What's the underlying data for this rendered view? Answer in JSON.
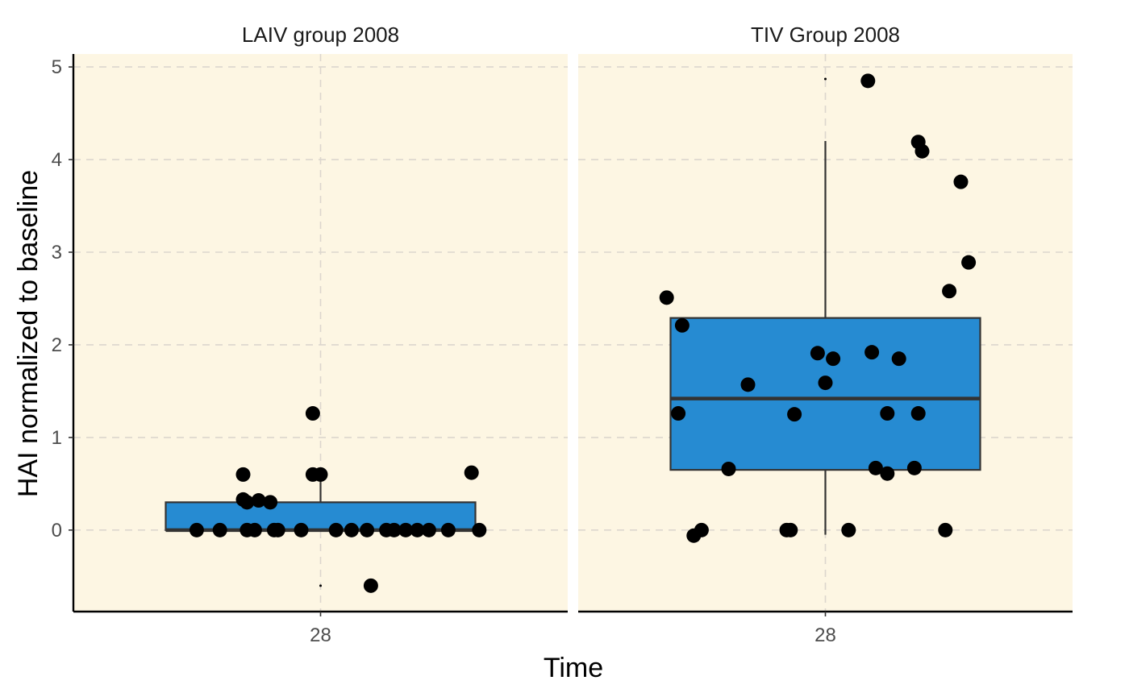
{
  "chart_data": {
    "type": "box",
    "title": "",
    "xlabel": "Time",
    "ylabel": "HAI normalized to baseline",
    "ylim": [
      -0.88,
      5.14
    ],
    "yticks": [
      0,
      1,
      2,
      3,
      4,
      5
    ],
    "xtick_label": "28",
    "grid": true,
    "colors": {
      "panel_background": "#fdf6e3",
      "box_fill": "#268bd2",
      "box_stroke": "#333333",
      "point": "#000000",
      "grid": "#dcd6ce"
    },
    "panels": [
      {
        "name": "LAIV group 2008",
        "box": {
          "q1": 0.0,
          "median": 0.0,
          "q3": 0.3,
          "whisker_low": 0.0,
          "whisker_high": 0.6
        },
        "outliers": [
          -0.6
        ],
        "points": [
          {
            "x": -0.32,
            "y": 0
          },
          {
            "x": -0.26,
            "y": 0
          },
          {
            "x": -0.2,
            "y": 0.6
          },
          {
            "x": -0.2,
            "y": 0.33
          },
          {
            "x": -0.19,
            "y": 0.3
          },
          {
            "x": -0.19,
            "y": 0
          },
          {
            "x": -0.17,
            "y": 0
          },
          {
            "x": -0.16,
            "y": 0.32
          },
          {
            "x": -0.13,
            "y": 0.3
          },
          {
            "x": -0.12,
            "y": 0
          },
          {
            "x": -0.11,
            "y": 0
          },
          {
            "x": -0.05,
            "y": 0
          },
          {
            "x": -0.02,
            "y": 1.26
          },
          {
            "x": -0.02,
            "y": 0.6
          },
          {
            "x": 0.0,
            "y": 0.6
          },
          {
            "x": 0.04,
            "y": 0
          },
          {
            "x": 0.08,
            "y": 0
          },
          {
            "x": 0.12,
            "y": 0
          },
          {
            "x": 0.13,
            "y": -0.6
          },
          {
            "x": 0.17,
            "y": 0
          },
          {
            "x": 0.19,
            "y": 0
          },
          {
            "x": 0.22,
            "y": 0
          },
          {
            "x": 0.25,
            "y": 0
          },
          {
            "x": 0.28,
            "y": 0
          },
          {
            "x": 0.33,
            "y": 0
          },
          {
            "x": 0.39,
            "y": 0.62
          },
          {
            "x": 0.41,
            "y": 0
          }
        ]
      },
      {
        "name": "TIV Group 2008",
        "box": {
          "q1": 0.65,
          "median": 1.42,
          "q3": 2.29,
          "whisker_low": -0.05,
          "whisker_high": 4.2
        },
        "outliers": [
          4.87
        ],
        "points": [
          {
            "x": -0.41,
            "y": 2.51
          },
          {
            "x": -0.37,
            "y": 2.21
          },
          {
            "x": -0.38,
            "y": 1.26
          },
          {
            "x": -0.34,
            "y": -0.06
          },
          {
            "x": -0.32,
            "y": 0.0
          },
          {
            "x": -0.2,
            "y": 1.57
          },
          {
            "x": -0.25,
            "y": 0.66
          },
          {
            "x": -0.1,
            "y": 0.0
          },
          {
            "x": -0.09,
            "y": 0.0
          },
          {
            "x": -0.08,
            "y": 1.25
          },
          {
            "x": -0.02,
            "y": 1.91
          },
          {
            "x": 0.0,
            "y": 1.59
          },
          {
            "x": 0.02,
            "y": 1.85
          },
          {
            "x": 0.06,
            "y": 0.0
          },
          {
            "x": 0.11,
            "y": 4.85
          },
          {
            "x": 0.12,
            "y": 1.92
          },
          {
            "x": 0.13,
            "y": 0.67
          },
          {
            "x": 0.16,
            "y": 0.61
          },
          {
            "x": 0.16,
            "y": 1.26
          },
          {
            "x": 0.19,
            "y": 1.85
          },
          {
            "x": 0.23,
            "y": 0.67
          },
          {
            "x": 0.24,
            "y": 4.19
          },
          {
            "x": 0.24,
            "y": 1.26
          },
          {
            "x": 0.25,
            "y": 4.09
          },
          {
            "x": 0.31,
            "y": 0.0
          },
          {
            "x": 0.32,
            "y": 2.58
          },
          {
            "x": 0.35,
            "y": 3.76
          },
          {
            "x": 0.37,
            "y": 2.89
          }
        ]
      }
    ]
  }
}
